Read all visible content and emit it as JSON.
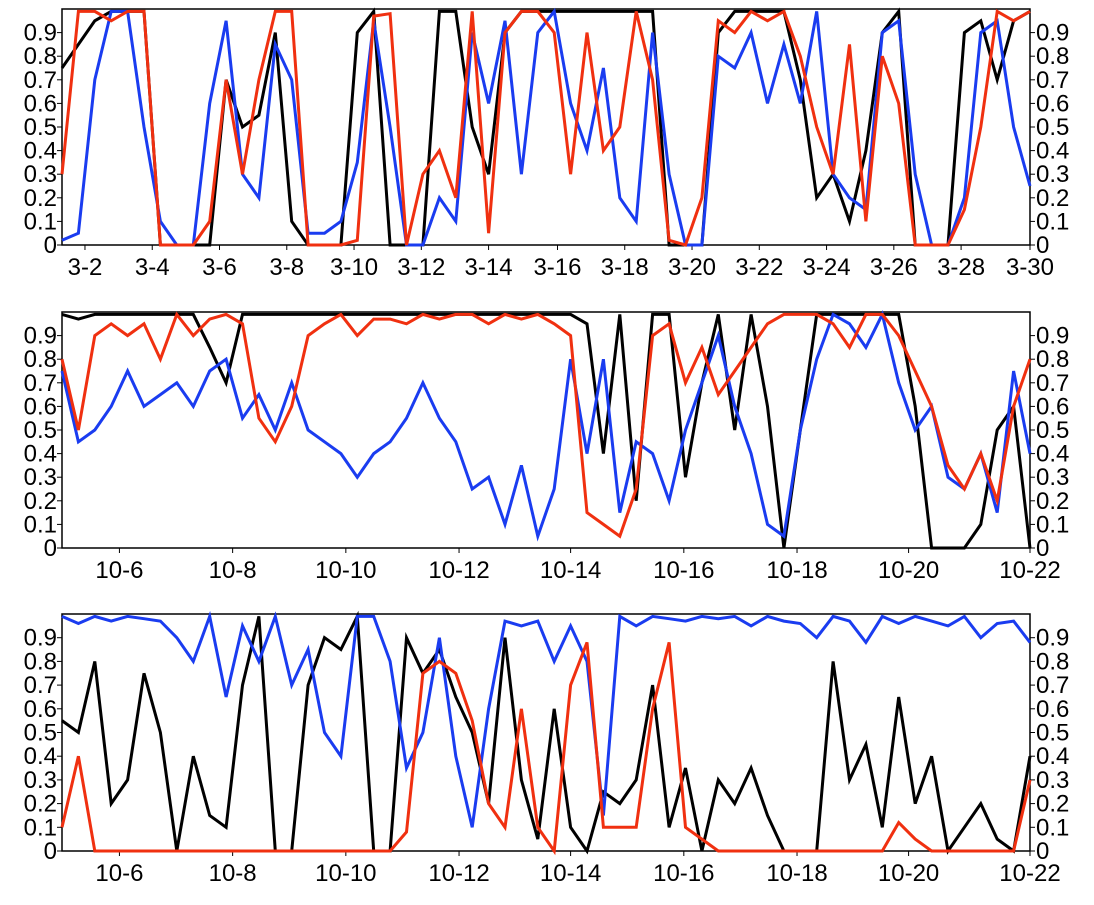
{
  "chart_data": [
    {
      "type": "line",
      "xlim": [
        0,
        59
      ],
      "ylim": [
        0,
        1
      ],
      "yticks": [
        0,
        0.1,
        0.2,
        0.3,
        0.4,
        0.5,
        0.6,
        0.7,
        0.8,
        0.9
      ],
      "xticks": [
        {
          "value": 1.4,
          "label": "3-2"
        },
        {
          "value": 5.5,
          "label": "3-4"
        },
        {
          "value": 9.6,
          "label": "3-6"
        },
        {
          "value": 13.7,
          "label": "3-8"
        },
        {
          "value": 17.8,
          "label": "3-10"
        },
        {
          "value": 21.9,
          "label": "3-12"
        },
        {
          "value": 26.0,
          "label": "3-14"
        },
        {
          "value": 30.2,
          "label": "3-16"
        },
        {
          "value": 34.3,
          "label": "3-18"
        },
        {
          "value": 38.4,
          "label": "3-20"
        },
        {
          "value": 42.5,
          "label": "3-22"
        },
        {
          "value": 46.6,
          "label": "3-24"
        },
        {
          "value": 50.7,
          "label": "3-26"
        },
        {
          "value": 54.8,
          "label": "3-28"
        },
        {
          "value": 59,
          "label": "3-30"
        }
      ],
      "series": [
        {
          "color": "#000000",
          "values": [
            0.75,
            0.85,
            0.95,
            0.99,
            0.99,
            0.99,
            0,
            0,
            0,
            0,
            0.7,
            0.5,
            0.55,
            0.9,
            0.1,
            0,
            0,
            0,
            0.9,
            0.99,
            0,
            0,
            0,
            0.99,
            0.99,
            0.5,
            0.3,
            0.9,
            0.99,
            0.99,
            0.99,
            0.99,
            0.99,
            0.99,
            0.99,
            0.99,
            0.99,
            0,
            0,
            0,
            0.9,
            0.99,
            0.99,
            0.99,
            0.99,
            0.7,
            0.2,
            0.3,
            0.1,
            0.4,
            0.9,
            0.99,
            0,
            0,
            0,
            0.9,
            0.95,
            0.7,
            0.95,
            0.99
          ]
        },
        {
          "color": "#1a3cf0",
          "values": [
            0.02,
            0.05,
            0.7,
            0.99,
            0.99,
            0.5,
            0.1,
            0,
            0,
            0.6,
            0.95,
            0.3,
            0.2,
            0.85,
            0.7,
            0.05,
            0.05,
            0.1,
            0.35,
            0.95,
            0.5,
            0,
            0,
            0.2,
            0.1,
            0.9,
            0.6,
            0.95,
            0.3,
            0.9,
            0.99,
            0.6,
            0.4,
            0.75,
            0.2,
            0.1,
            0.9,
            0.3,
            0,
            0,
            0.8,
            0.75,
            0.9,
            0.6,
            0.85,
            0.6,
            0.99,
            0.3,
            0.2,
            0.15,
            0.9,
            0.95,
            0.3,
            0,
            0,
            0.2,
            0.9,
            0.95,
            0.5,
            0.25
          ]
        },
        {
          "color": "#f03010",
          "values": [
            0.3,
            0.99,
            0.99,
            0.95,
            0.99,
            0.99,
            0,
            0,
            0,
            0.1,
            0.7,
            0.3,
            0.7,
            0.99,
            0.99,
            0,
            0,
            0,
            0.02,
            0.97,
            0.98,
            0,
            0.3,
            0.4,
            0.2,
            0.99,
            0.05,
            0.9,
            0.99,
            0.99,
            0.9,
            0.3,
            0.9,
            0.4,
            0.5,
            0.99,
            0.7,
            0.02,
            0,
            0.2,
            0.95,
            0.9,
            0.99,
            0.95,
            0.99,
            0.8,
            0.5,
            0.3,
            0.85,
            0.1,
            0.8,
            0.6,
            0,
            0,
            0,
            0.15,
            0.5,
            0.99,
            0.95,
            0.99
          ]
        }
      ]
    },
    {
      "type": "line",
      "xlim": [
        0,
        59
      ],
      "ylim": [
        0,
        1
      ],
      "yticks": [
        0,
        0.1,
        0.2,
        0.3,
        0.4,
        0.5,
        0.6,
        0.7,
        0.8,
        0.9
      ],
      "xticks": [
        {
          "value": 3.5,
          "label": "10-6"
        },
        {
          "value": 10.4,
          "label": "10-8"
        },
        {
          "value": 17.3,
          "label": "10-10"
        },
        {
          "value": 24.2,
          "label": "10-12"
        },
        {
          "value": 31.0,
          "label": "10-14"
        },
        {
          "value": 37.9,
          "label": "10-16"
        },
        {
          "value": 44.8,
          "label": "10-18"
        },
        {
          "value": 51.6,
          "label": "10-20"
        },
        {
          "value": 59,
          "label": "10-22"
        }
      ],
      "series": [
        {
          "color": "#000000",
          "values": [
            0.99,
            0.97,
            0.99,
            0.99,
            0.99,
            0.99,
            0.99,
            0.99,
            0.99,
            0.85,
            0.7,
            0.99,
            0.99,
            0.99,
            0.99,
            0.99,
            0.99,
            0.99,
            0.99,
            0.99,
            0.99,
            0.99,
            0.99,
            0.99,
            0.99,
            0.99,
            0.99,
            0.99,
            0.99,
            0.99,
            0.99,
            0.99,
            0.95,
            0.4,
            0.99,
            0.2,
            0.99,
            0.99,
            0.3,
            0.7,
            0.99,
            0.5,
            0.99,
            0.6,
            0,
            0.5,
            0.99,
            0.99,
            0.99,
            0.99,
            0.99,
            0.99,
            0.6,
            0,
            0,
            0,
            0.1,
            0.5,
            0.6,
            0
          ]
        },
        {
          "color": "#1a3cf0",
          "values": [
            0.75,
            0.45,
            0.5,
            0.6,
            0.75,
            0.6,
            0.65,
            0.7,
            0.6,
            0.75,
            0.8,
            0.55,
            0.65,
            0.5,
            0.7,
            0.5,
            0.45,
            0.4,
            0.3,
            0.4,
            0.45,
            0.55,
            0.7,
            0.55,
            0.45,
            0.25,
            0.3,
            0.1,
            0.35,
            0.05,
            0.25,
            0.8,
            0.4,
            0.8,
            0.15,
            0.45,
            0.4,
            0.2,
            0.5,
            0.7,
            0.9,
            0.6,
            0.4,
            0.1,
            0.05,
            0.5,
            0.8,
            0.99,
            0.95,
            0.85,
            0.99,
            0.7,
            0.5,
            0.6,
            0.3,
            0.25,
            0.4,
            0.15,
            0.75,
            0.4
          ]
        },
        {
          "color": "#f03010",
          "values": [
            0.8,
            0.5,
            0.9,
            0.95,
            0.9,
            0.95,
            0.8,
            0.99,
            0.9,
            0.97,
            0.99,
            0.95,
            0.55,
            0.45,
            0.6,
            0.9,
            0.95,
            0.99,
            0.9,
            0.97,
            0.97,
            0.95,
            0.99,
            0.97,
            0.99,
            0.99,
            0.95,
            0.99,
            0.97,
            0.99,
            0.95,
            0.9,
            0.15,
            0.1,
            0.05,
            0.25,
            0.9,
            0.95,
            0.7,
            0.85,
            0.65,
            0.75,
            0.85,
            0.95,
            0.99,
            0.99,
            0.99,
            0.95,
            0.85,
            0.99,
            0.99,
            0.9,
            0.75,
            0.6,
            0.35,
            0.25,
            0.4,
            0.2,
            0.6,
            0.8
          ]
        }
      ]
    },
    {
      "type": "line",
      "xlim": [
        0,
        59
      ],
      "ylim": [
        0,
        1
      ],
      "yticks": [
        0,
        0.1,
        0.2,
        0.3,
        0.4,
        0.5,
        0.6,
        0.7,
        0.8,
        0.9
      ],
      "xticks": [
        {
          "value": 3.5,
          "label": "10-6"
        },
        {
          "value": 10.4,
          "label": "10-8"
        },
        {
          "value": 17.3,
          "label": "10-10"
        },
        {
          "value": 24.2,
          "label": "10-12"
        },
        {
          "value": 31.0,
          "label": "10-14"
        },
        {
          "value": 37.9,
          "label": "10-16"
        },
        {
          "value": 44.8,
          "label": "10-18"
        },
        {
          "value": 51.6,
          "label": "10-20"
        },
        {
          "value": 59,
          "label": "10-22"
        }
      ],
      "series": [
        {
          "color": "#000000",
          "values": [
            0.55,
            0.5,
            0.8,
            0.2,
            0.3,
            0.75,
            0.5,
            0,
            0.4,
            0.15,
            0.1,
            0.7,
            0.99,
            0,
            0,
            0.7,
            0.9,
            0.85,
            0.99,
            0,
            0,
            0.9,
            0.75,
            0.85,
            0.65,
            0.5,
            0.2,
            0.9,
            0.3,
            0.05,
            0.6,
            0.1,
            0,
            0.25,
            0.2,
            0.3,
            0.7,
            0.1,
            0.35,
            0,
            0.3,
            0.2,
            0.35,
            0.15,
            0,
            0,
            0,
            0.8,
            0.3,
            0.45,
            0.1,
            0.65,
            0.2,
            0.4,
            0,
            0.1,
            0.2,
            0.05,
            0,
            0.4
          ]
        },
        {
          "color": "#1a3cf0",
          "values": [
            0.99,
            0.96,
            0.99,
            0.97,
            0.99,
            0.98,
            0.97,
            0.9,
            0.8,
            0.99,
            0.65,
            0.95,
            0.8,
            0.99,
            0.7,
            0.85,
            0.5,
            0.4,
            0.99,
            0.99,
            0.8,
            0.35,
            0.5,
            0.9,
            0.4,
            0.1,
            0.6,
            0.97,
            0.95,
            0.97,
            0.8,
            0.95,
            0.8,
            0.15,
            0.99,
            0.95,
            0.99,
            0.98,
            0.97,
            0.99,
            0.98,
            0.99,
            0.95,
            0.99,
            0.97,
            0.96,
            0.9,
            0.99,
            0.97,
            0.88,
            0.99,
            0.96,
            0.99,
            0.97,
            0.95,
            0.99,
            0.9,
            0.96,
            0.97,
            0.88
          ]
        },
        {
          "color": "#f03010",
          "values": [
            0.1,
            0.4,
            0,
            0,
            0,
            0,
            0,
            0,
            0,
            0,
            0,
            0,
            0,
            0,
            0,
            0,
            0,
            0,
            0,
            0,
            0,
            0.08,
            0.75,
            0.8,
            0.75,
            0.55,
            0.2,
            0.1,
            0.6,
            0.1,
            0,
            0.7,
            0.88,
            0.1,
            0.1,
            0.1,
            0.6,
            0.88,
            0.1,
            0.05,
            0,
            0,
            0,
            0,
            0,
            0,
            0,
            0,
            0,
            0,
            0,
            0.12,
            0.05,
            0,
            0,
            0,
            0,
            0,
            0,
            0.3
          ]
        }
      ]
    }
  ]
}
